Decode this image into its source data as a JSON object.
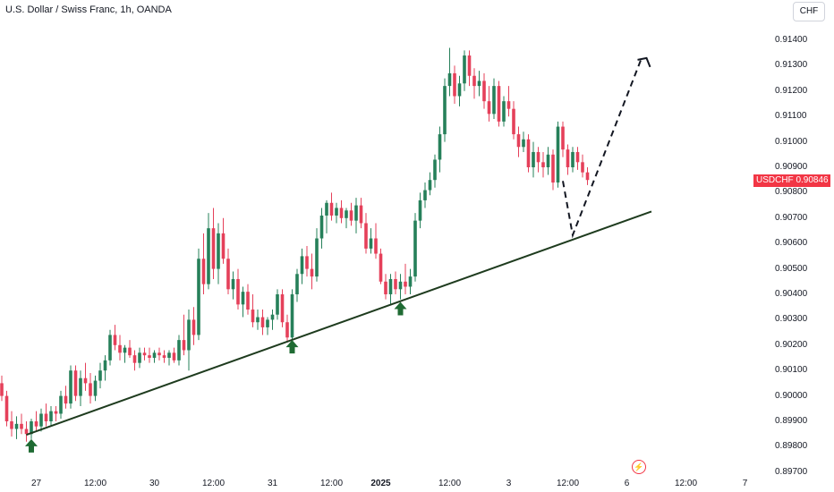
{
  "header": {
    "title": "U.S. Dollar / Swiss Franc, 1h, OANDA"
  },
  "currency_button": "CHF",
  "price_label": {
    "symbol": "USDCHF",
    "value": "0.90846",
    "price": 0.90846
  },
  "colors": {
    "up": "#26805a",
    "down": "#e5405a",
    "trendline": "#1e3b1e",
    "arrow": "#1f6b33",
    "label": "#f23645"
  },
  "event_icon": "lightning-icon",
  "chart_data": {
    "type": "candlestick",
    "title": "U.S. Dollar / Swiss Franc, 1h, OANDA",
    "ylim": [
      0.897,
      0.9145
    ],
    "y_ticks": [
      "0.91400",
      "0.91300",
      "0.91200",
      "0.91100",
      "0.91000",
      "0.90900",
      "0.90800",
      "0.90700",
      "0.90600",
      "0.90500",
      "0.90400",
      "0.90300",
      "0.90200",
      "0.90100",
      "0.90000",
      "0.89900",
      "0.89800",
      "0.89700"
    ],
    "x_ticks": [
      {
        "label": "27",
        "i": 7
      },
      {
        "label": "12:00",
        "i": 19
      },
      {
        "label": "30",
        "i": 31
      },
      {
        "label": "12:00",
        "i": 43
      },
      {
        "label": "31",
        "i": 55
      },
      {
        "label": "12:00",
        "i": 67
      },
      {
        "label": "2025",
        "i": 77
      },
      {
        "label": "12:00",
        "i": 91
      },
      {
        "label": "3",
        "i": 103
      },
      {
        "label": "12:00",
        "i": 115
      },
      {
        "label": "6",
        "i": 127
      },
      {
        "label": "12:00",
        "i": 139
      },
      {
        "label": "7",
        "i": 151
      }
    ],
    "ohlc": [
      [
        0.9005,
        0.9008,
        0.8998,
        0.9
      ],
      [
        0.9,
        0.9002,
        0.8988,
        0.899
      ],
      [
        0.899,
        0.8994,
        0.8984,
        0.8987
      ],
      [
        0.8987,
        0.8992,
        0.8983,
        0.8989
      ],
      [
        0.8989,
        0.8993,
        0.8985,
        0.8987
      ],
      [
        0.8987,
        0.899,
        0.8982,
        0.8985
      ],
      [
        0.8985,
        0.8991,
        0.8983,
        0.899
      ],
      [
        0.899,
        0.8994,
        0.8986,
        0.8988
      ],
      [
        0.8988,
        0.8995,
        0.8986,
        0.8993
      ],
      [
        0.8993,
        0.8997,
        0.8988,
        0.899
      ],
      [
        0.899,
        0.8996,
        0.8988,
        0.8994
      ],
      [
        0.8994,
        0.8996,
        0.899,
        0.8993
      ],
      [
        0.8993,
        0.9002,
        0.8991,
        0.9
      ],
      [
        0.9,
        0.9004,
        0.8995,
        0.8997
      ],
      [
        0.8997,
        0.9012,
        0.8995,
        0.901
      ],
      [
        0.901,
        0.9012,
        0.8998,
        0.9
      ],
      [
        0.9,
        0.901,
        0.8996,
        0.9007
      ],
      [
        0.9007,
        0.9013,
        0.9002,
        0.9005
      ],
      [
        0.9005,
        0.9009,
        0.8997,
        0.9
      ],
      [
        0.9,
        0.9008,
        0.8998,
        0.9006
      ],
      [
        0.9006,
        0.9013,
        0.9003,
        0.901
      ],
      [
        0.901,
        0.9016,
        0.9006,
        0.9014
      ],
      [
        0.9014,
        0.9026,
        0.9012,
        0.9024
      ],
      [
        0.9024,
        0.9028,
        0.9018,
        0.902
      ],
      [
        0.902,
        0.9024,
        0.9014,
        0.9017
      ],
      [
        0.9017,
        0.902,
        0.9013,
        0.9019
      ],
      [
        0.9019,
        0.9022,
        0.9015,
        0.9016
      ],
      [
        0.9016,
        0.9018,
        0.901,
        0.9013
      ],
      [
        0.9013,
        0.9019,
        0.9011,
        0.9017
      ],
      [
        0.9017,
        0.9019,
        0.9014,
        0.9016
      ],
      [
        0.9016,
        0.9019,
        0.9013,
        0.9015
      ],
      [
        0.9015,
        0.9018,
        0.9013,
        0.9017
      ],
      [
        0.9017,
        0.9019,
        0.9014,
        0.9016
      ],
      [
        0.9016,
        0.9018,
        0.9013,
        0.9015
      ],
      [
        0.9015,
        0.9018,
        0.9012,
        0.9017
      ],
      [
        0.9017,
        0.9019,
        0.9013,
        0.9014
      ],
      [
        0.9014,
        0.9024,
        0.9012,
        0.9022
      ],
      [
        0.9022,
        0.9032,
        0.9016,
        0.9018
      ],
      [
        0.9018,
        0.9034,
        0.901,
        0.903
      ],
      [
        0.903,
        0.9035,
        0.902,
        0.9024
      ],
      [
        0.9024,
        0.9058,
        0.9022,
        0.9054
      ],
      [
        0.9054,
        0.9064,
        0.904,
        0.9044
      ],
      [
        0.9044,
        0.9072,
        0.9042,
        0.9066
      ],
      [
        0.9066,
        0.9074,
        0.9046,
        0.905
      ],
      [
        0.905,
        0.9068,
        0.9044,
        0.9064
      ],
      [
        0.9064,
        0.907,
        0.9052,
        0.9054
      ],
      [
        0.9054,
        0.9058,
        0.904,
        0.9042
      ],
      [
        0.9042,
        0.9049,
        0.9038,
        0.9046
      ],
      [
        0.9046,
        0.905,
        0.9034,
        0.9036
      ],
      [
        0.9036,
        0.9043,
        0.9031,
        0.9041
      ],
      [
        0.9041,
        0.9044,
        0.9032,
        0.9034
      ],
      [
        0.9034,
        0.904,
        0.9027,
        0.9029
      ],
      [
        0.9029,
        0.9034,
        0.9026,
        0.9031
      ],
      [
        0.9031,
        0.9034,
        0.9024,
        0.9027
      ],
      [
        0.9027,
        0.9031,
        0.9024,
        0.903
      ],
      [
        0.903,
        0.9034,
        0.9026,
        0.9032
      ],
      [
        0.9032,
        0.9042,
        0.903,
        0.904
      ],
      [
        0.904,
        0.9042,
        0.9027,
        0.9029
      ],
      [
        0.9029,
        0.9032,
        0.9021,
        0.9023
      ],
      [
        0.9023,
        0.9042,
        0.9022,
        0.904
      ],
      [
        0.904,
        0.905,
        0.9037,
        0.9048
      ],
      [
        0.9048,
        0.9058,
        0.9044,
        0.9055
      ],
      [
        0.9055,
        0.9059,
        0.9047,
        0.905
      ],
      [
        0.905,
        0.9056,
        0.9042,
        0.9047
      ],
      [
        0.9047,
        0.9066,
        0.9045,
        0.9062
      ],
      [
        0.9062,
        0.9074,
        0.9058,
        0.9071
      ],
      [
        0.9071,
        0.9077,
        0.9064,
        0.9076
      ],
      [
        0.9076,
        0.908,
        0.9069,
        0.9071
      ],
      [
        0.9071,
        0.9076,
        0.9068,
        0.9074
      ],
      [
        0.9074,
        0.9077,
        0.9068,
        0.907
      ],
      [
        0.907,
        0.9074,
        0.9066,
        0.9073
      ],
      [
        0.9073,
        0.9076,
        0.9067,
        0.9069
      ],
      [
        0.9069,
        0.9078,
        0.9064,
        0.9075
      ],
      [
        0.9075,
        0.9078,
        0.9066,
        0.9068
      ],
      [
        0.9068,
        0.9072,
        0.9056,
        0.9058
      ],
      [
        0.9058,
        0.9066,
        0.9056,
        0.9062
      ],
      [
        0.9062,
        0.9068,
        0.9054,
        0.9056
      ],
      [
        0.9056,
        0.9058,
        0.9044,
        0.9045
      ],
      [
        0.9045,
        0.9048,
        0.9038,
        0.904
      ],
      [
        0.904,
        0.9048,
        0.9036,
        0.9046
      ],
      [
        0.9046,
        0.9049,
        0.904,
        0.9042
      ],
      [
        0.9042,
        0.9048,
        0.9038,
        0.9045
      ],
      [
        0.9045,
        0.9052,
        0.904,
        0.9043
      ],
      [
        0.9043,
        0.905,
        0.904,
        0.9047
      ],
      [
        0.9047,
        0.9072,
        0.9045,
        0.9069
      ],
      [
        0.9069,
        0.908,
        0.9066,
        0.9077
      ],
      [
        0.9077,
        0.9084,
        0.9074,
        0.9081
      ],
      [
        0.9081,
        0.9088,
        0.9079,
        0.9085
      ],
      [
        0.9085,
        0.9095,
        0.9082,
        0.9093
      ],
      [
        0.9093,
        0.9106,
        0.9088,
        0.9103
      ],
      [
        0.9103,
        0.9125,
        0.91,
        0.9122
      ],
      [
        0.9122,
        0.9137,
        0.9118,
        0.9127
      ],
      [
        0.9127,
        0.913,
        0.9115,
        0.9118
      ],
      [
        0.9118,
        0.9126,
        0.9114,
        0.9123
      ],
      [
        0.9123,
        0.9136,
        0.912,
        0.9134
      ],
      [
        0.9134,
        0.9136,
        0.9122,
        0.9126
      ],
      [
        0.9126,
        0.9129,
        0.9117,
        0.9122
      ],
      [
        0.9122,
        0.9128,
        0.9118,
        0.9124
      ],
      [
        0.9124,
        0.9127,
        0.9113,
        0.9116
      ],
      [
        0.9116,
        0.9122,
        0.9108,
        0.9111
      ],
      [
        0.9111,
        0.9125,
        0.9109,
        0.9122
      ],
      [
        0.9122,
        0.9124,
        0.9106,
        0.9108
      ],
      [
        0.9108,
        0.9118,
        0.9106,
        0.9116
      ],
      [
        0.9116,
        0.9122,
        0.911,
        0.9113
      ],
      [
        0.9113,
        0.9116,
        0.9101,
        0.9103
      ],
      [
        0.9103,
        0.9106,
        0.9094,
        0.9098
      ],
      [
        0.9098,
        0.9104,
        0.9096,
        0.9101
      ],
      [
        0.9101,
        0.9103,
        0.9088,
        0.909
      ],
      [
        0.909,
        0.91,
        0.9086,
        0.9096
      ],
      [
        0.9096,
        0.9098,
        0.9088,
        0.9092
      ],
      [
        0.9092,
        0.9096,
        0.9086,
        0.909
      ],
      [
        0.909,
        0.9098,
        0.9087,
        0.9095
      ],
      [
        0.9095,
        0.9097,
        0.9081,
        0.9084
      ],
      [
        0.9084,
        0.9108,
        0.9082,
        0.9106
      ],
      [
        0.9106,
        0.9108,
        0.9094,
        0.9097
      ],
      [
        0.9097,
        0.9099,
        0.9087,
        0.909
      ],
      [
        0.909,
        0.9098,
        0.9088,
        0.9096
      ],
      [
        0.9096,
        0.9098,
        0.9089,
        0.9092
      ],
      [
        0.9092,
        0.9095,
        0.9086,
        0.9088
      ],
      [
        0.9088,
        0.909,
        0.9083,
        0.9085
      ]
    ],
    "trendline": {
      "from": {
        "i": 5,
        "y": 0.89847
      },
      "to": {
        "i": 132,
        "y": 0.90726
      }
    },
    "projection": [
      {
        "i": 114,
        "y": 0.90846
      },
      {
        "i": 116,
        "y": 0.90633
      },
      {
        "i": 130,
        "y": 0.9133
      }
    ],
    "arrow_head": {
      "i": 131,
      "y": 0.9133
    },
    "support_arrows": [
      {
        "i": 6,
        "y": 0.8983
      },
      {
        "i": 59,
        "y": 0.9022
      },
      {
        "i": 81,
        "y": 0.9037
      }
    ]
  }
}
